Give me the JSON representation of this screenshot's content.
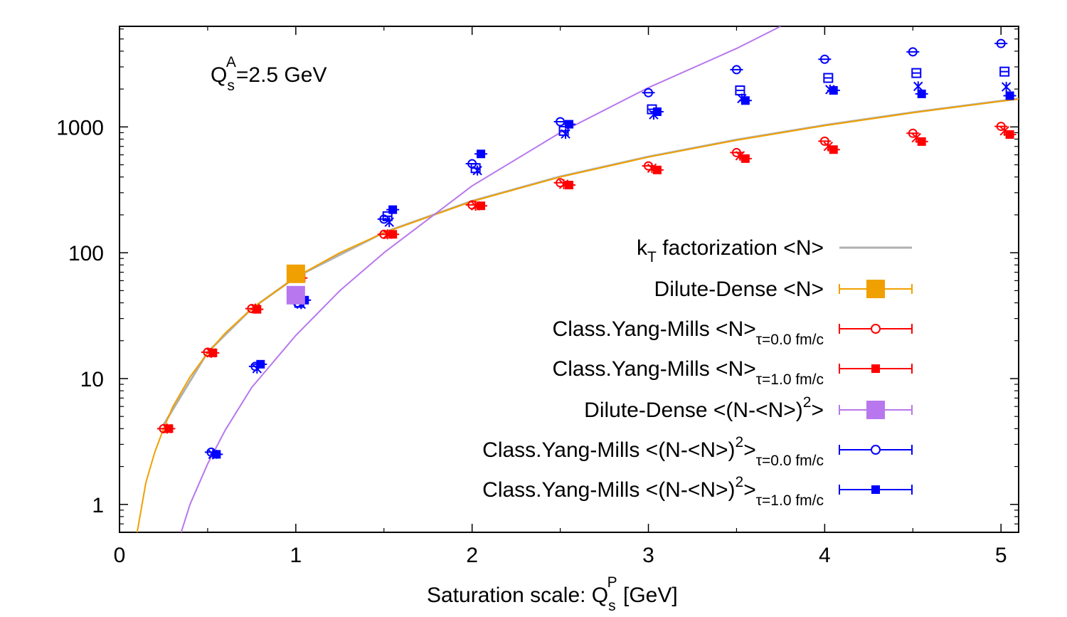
{
  "chart_data": {
    "type": "scatter",
    "annotation": {
      "base": "Q",
      "sub": "s",
      "sup": "A",
      "rest": "=2.5 GeV"
    },
    "xlabel": {
      "text": "Saturation scale: Q",
      "sub": "s",
      "sup": "P",
      "rest": " [GeV]"
    },
    "ylabel": "",
    "xlim": [
      0,
      5.1
    ],
    "ylim": [
      0.6,
      6300
    ],
    "yscale": "log",
    "x_ticks": [
      "0",
      "1",
      "2",
      "3",
      "4",
      "5"
    ],
    "y_ticks": [
      "1",
      "10",
      "100",
      "1000"
    ],
    "x_tick_values": [
      0,
      1,
      2,
      3,
      4,
      5
    ],
    "y_tick_values": [
      1,
      10,
      100,
      1000
    ],
    "grid": false,
    "legend_position": "bottom-right",
    "colors": {
      "ktfact": "#b0b0b0",
      "dilute_mean": "#f0a000",
      "cym_mean": "#ff0000",
      "dilute_var": "#b877ee",
      "cym_var": "#0000ff"
    },
    "legend": [
      {
        "key": "ktfact",
        "text": "k",
        "sub": "T",
        "rest": " factorization  <N>",
        "marker": "line"
      },
      {
        "key": "dilute_mean",
        "text": "Dilute-Dense <N>",
        "marker": "big-square"
      },
      {
        "key": "cym_mean_t0",
        "text": "Class.Yang-Mills <N>",
        "sub": "τ=0.0 fm/c",
        "marker": "open-circle"
      },
      {
        "key": "cym_mean_t1",
        "text": "Class.Yang-Mills <N>",
        "sub": "τ=1.0 fm/c",
        "marker": "filled-square"
      },
      {
        "key": "dilute_var",
        "text": "Dilute-Dense <(N-<N>)",
        "sup": "2",
        "rest": ">",
        "marker": "big-square"
      },
      {
        "key": "cym_var_t0",
        "text": "Class.Yang-Mills <(N-<N>)",
        "sup": "2",
        "rest": ">",
        "sub": "τ=0.0 fm/c",
        "marker": "open-circle"
      },
      {
        "key": "cym_var_t1",
        "text": "Class.Yang-Mills <(N-<N>)",
        "sup": "2",
        "rest": ">",
        "sub": "τ=1.0 fm/c",
        "marker": "filled-square"
      }
    ],
    "series": [
      {
        "key": "ktfact",
        "kind": "curve",
        "color": "#b0b0b0",
        "points": [
          [
            0.25,
            4.3
          ],
          [
            0.5,
            16.2
          ],
          [
            0.75,
            36
          ],
          [
            1.0,
            64
          ],
          [
            1.5,
            145
          ],
          [
            2.0,
            258
          ],
          [
            2.5,
            403
          ],
          [
            3.0,
            580
          ],
          [
            3.5,
            790
          ],
          [
            4.0,
            1032
          ],
          [
            4.5,
            1305
          ],
          [
            5.0,
            1610
          ],
          [
            5.1,
            1675
          ]
        ]
      },
      {
        "key": "dilute_mean",
        "kind": "curve",
        "color": "#f0a000",
        "points": [
          [
            0.1,
            0.6
          ],
          [
            0.15,
            1.5
          ],
          [
            0.2,
            2.6
          ],
          [
            0.25,
            4.0
          ],
          [
            0.3,
            5.9
          ],
          [
            0.4,
            10.3
          ],
          [
            0.5,
            16.0
          ],
          [
            0.6,
            23
          ],
          [
            0.75,
            36
          ],
          [
            1.0,
            64
          ],
          [
            1.25,
            100
          ],
          [
            1.5,
            144
          ],
          [
            2.0,
            256
          ],
          [
            2.5,
            400
          ],
          [
            3.0,
            576
          ],
          [
            3.5,
            784
          ],
          [
            4.0,
            1024
          ],
          [
            4.5,
            1296
          ],
          [
            5.0,
            1600
          ],
          [
            5.1,
            1665
          ]
        ]
      },
      {
        "key": "dilute_mean_point",
        "kind": "marker",
        "color": "#f0a000",
        "points": [
          [
            1.0,
            68
          ]
        ]
      },
      {
        "key": "dilute_var",
        "kind": "curve",
        "color": "#b877ee",
        "points": [
          [
            0.35,
            0.6
          ],
          [
            0.4,
            1.0
          ],
          [
            0.5,
            2.1
          ],
          [
            0.6,
            3.9
          ],
          [
            0.75,
            8.5
          ],
          [
            1.0,
            22
          ],
          [
            1.25,
            50
          ],
          [
            1.5,
            100
          ],
          [
            2.0,
            340
          ],
          [
            2.5,
            900
          ],
          [
            3.0,
            2050
          ],
          [
            3.5,
            4200
          ],
          [
            3.75,
            6300
          ]
        ]
      },
      {
        "key": "dilute_var_point",
        "kind": "marker",
        "color": "#b877ee",
        "points": [
          [
            1.0,
            46
          ]
        ]
      },
      {
        "key": "cym_mean_t0",
        "kind": "open-circle",
        "color": "#ff0000",
        "points": [
          [
            0.25,
            4.0
          ],
          [
            0.5,
            16.2
          ],
          [
            0.75,
            36
          ],
          [
            1.0,
            63
          ],
          [
            1.5,
            140
          ],
          [
            2.0,
            240
          ],
          [
            2.5,
            360
          ],
          [
            3.0,
            490
          ],
          [
            3.5,
            625
          ],
          [
            4.0,
            770
          ],
          [
            4.5,
            890
          ],
          [
            5.0,
            1010
          ]
        ]
      },
      {
        "key": "cym_mean_t1",
        "kind": "filled-square",
        "color": "#ff0000",
        "points": [
          [
            0.28,
            4.0
          ],
          [
            0.53,
            16.0
          ],
          [
            0.78,
            35.5
          ],
          [
            1.03,
            63
          ],
          [
            1.55,
            140
          ],
          [
            2.05,
            236
          ],
          [
            2.55,
            345
          ],
          [
            3.05,
            455
          ],
          [
            3.55,
            560
          ],
          [
            4.05,
            660
          ],
          [
            4.55,
            765
          ],
          [
            5.05,
            870
          ]
        ]
      },
      {
        "key": "cym_var_t0",
        "kind": "open-circle",
        "color": "#0000ff",
        "points": [
          [
            0.52,
            2.6
          ],
          [
            0.77,
            12.5
          ],
          [
            1.01,
            40
          ],
          [
            1.5,
            185
          ],
          [
            2.0,
            510
          ],
          [
            2.5,
            1100
          ],
          [
            3.0,
            1870
          ],
          [
            3.5,
            2850
          ],
          [
            4.0,
            3450
          ],
          [
            4.5,
            3950
          ],
          [
            5.0,
            4600
          ]
        ]
      },
      {
        "key": "cym_var_t1",
        "kind": "filled-square",
        "color": "#0000ff",
        "points": [
          [
            0.55,
            2.5
          ],
          [
            0.8,
            13
          ],
          [
            1.05,
            42
          ],
          [
            1.55,
            220
          ],
          [
            2.05,
            610
          ],
          [
            2.55,
            1050
          ],
          [
            3.05,
            1320
          ],
          [
            3.55,
            1620
          ],
          [
            4.05,
            1950
          ],
          [
            4.55,
            1830
          ],
          [
            5.05,
            1770
          ]
        ]
      },
      {
        "key": "cym_var_boxes",
        "kind": "open-square",
        "color": "#0000ff",
        "points": [
          [
            1.02,
            40
          ],
          [
            1.52,
            195
          ],
          [
            2.02,
            470
          ],
          [
            2.52,
            930
          ],
          [
            3.02,
            1380
          ],
          [
            3.52,
            1950
          ],
          [
            4.02,
            2450
          ],
          [
            4.52,
            2680
          ],
          [
            5.02,
            2750
          ]
        ]
      },
      {
        "key": "cym_var_stars",
        "kind": "star",
        "color": "#0000ff",
        "points": [
          [
            0.53,
            2.5
          ],
          [
            0.78,
            12
          ],
          [
            1.03,
            39
          ],
          [
            1.53,
            175
          ],
          [
            2.03,
            450
          ],
          [
            2.53,
            880
          ],
          [
            3.03,
            1250
          ],
          [
            3.53,
            1680
          ],
          [
            4.03,
            1980
          ],
          [
            4.53,
            2100
          ],
          [
            5.03,
            2080
          ]
        ]
      },
      {
        "key": "cym_mean_stars",
        "kind": "star",
        "color": "#ff0000",
        "points": [
          [
            0.27,
            4.0
          ],
          [
            0.52,
            16
          ],
          [
            0.77,
            36
          ],
          [
            1.02,
            64
          ],
          [
            1.52,
            140
          ],
          [
            2.02,
            236
          ],
          [
            2.52,
            350
          ],
          [
            3.02,
            470
          ],
          [
            3.52,
            590
          ],
          [
            4.02,
            700
          ],
          [
            4.52,
            820
          ],
          [
            5.02,
            930
          ]
        ]
      }
    ]
  }
}
